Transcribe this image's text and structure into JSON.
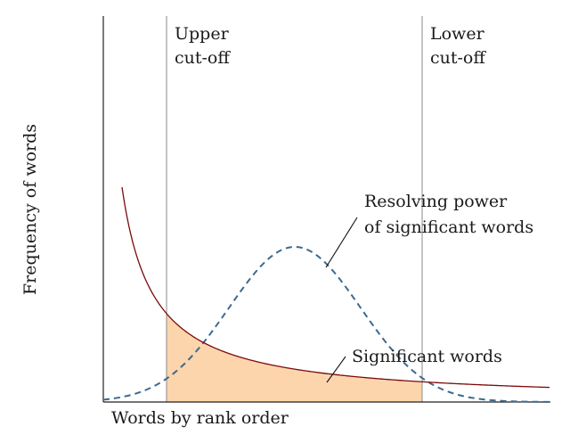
{
  "diagram": {
    "y_axis_label": "Frequency of words",
    "x_axis_label": "Words by rank order",
    "upper_cutoff": {
      "line1": "Upper",
      "line2": "cut-off"
    },
    "lower_cutoff": {
      "line1": "Lower",
      "line2": "cut-off"
    },
    "resolving_power": {
      "line1": "Resolving power",
      "line2": "of significant words"
    },
    "significant_words": "Significant words",
    "colors": {
      "frequency_curve": "#7a0a0a",
      "resolving_curve": "#3c6a90",
      "significant_region_fill": "#fcd5ad",
      "cutoff_line": "#8a8a8a",
      "axis": "#222222"
    }
  }
}
